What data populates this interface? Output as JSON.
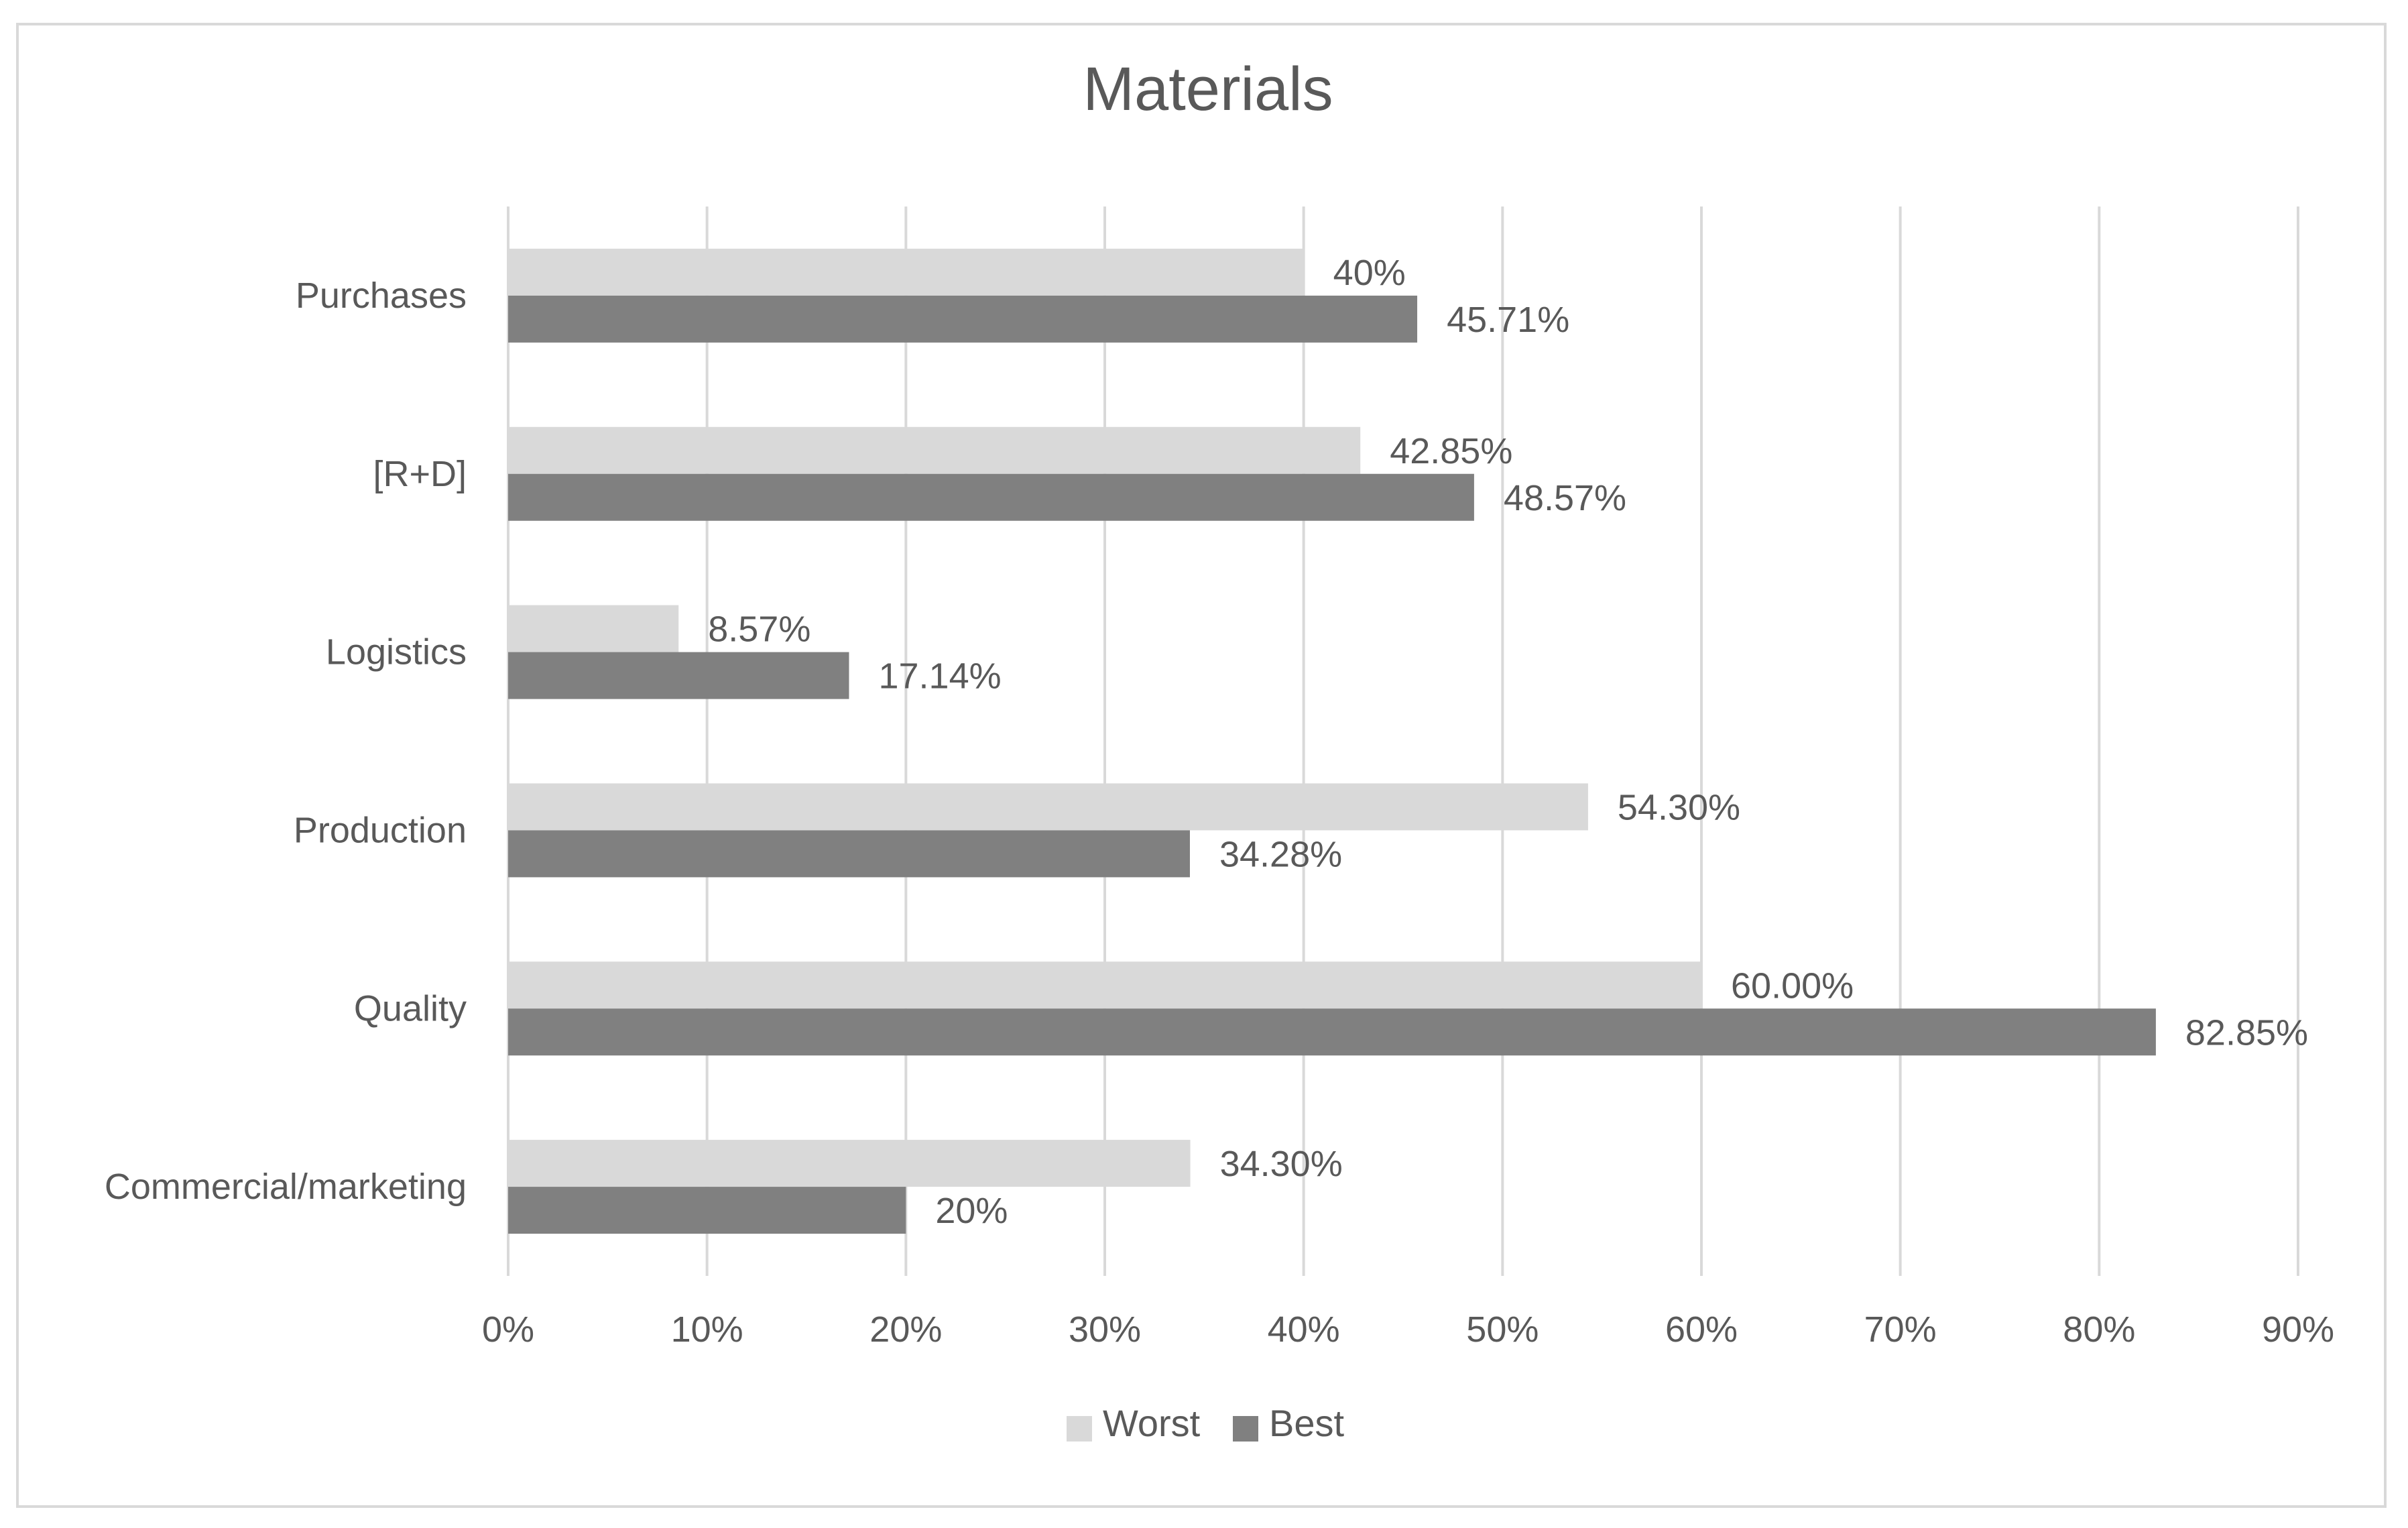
{
  "chart_data": {
    "type": "bar",
    "orientation": "horizontal",
    "title": "Materials",
    "xlabel": "",
    "ylabel": "",
    "categories": [
      "Purchases",
      "[R+D]",
      "Logistics",
      "Production",
      "Quality",
      "Commercial/marketing"
    ],
    "series": [
      {
        "name": "Worst",
        "color": "#d9d9d9",
        "values": [
          40,
          42.85,
          8.57,
          54.3,
          60.0,
          34.3
        ],
        "labels": [
          "40%",
          "42.85%",
          "8.57%",
          "54.30%",
          "60.00%",
          "34.30%"
        ]
      },
      {
        "name": "Best",
        "color": "#808080",
        "values": [
          45.71,
          48.57,
          17.14,
          34.28,
          82.85,
          20
        ],
        "labels": [
          "45.71%",
          "48.57%",
          "17.14%",
          "34.28%",
          "82.85%",
          "20%"
        ]
      }
    ],
    "xlim": [
      0,
      90
    ],
    "xticks": [
      "0%",
      "10%",
      "20%",
      "30%",
      "40%",
      "50%",
      "60%",
      "70%",
      "80%",
      "90%"
    ],
    "grid": true,
    "legend_position": "bottom"
  }
}
